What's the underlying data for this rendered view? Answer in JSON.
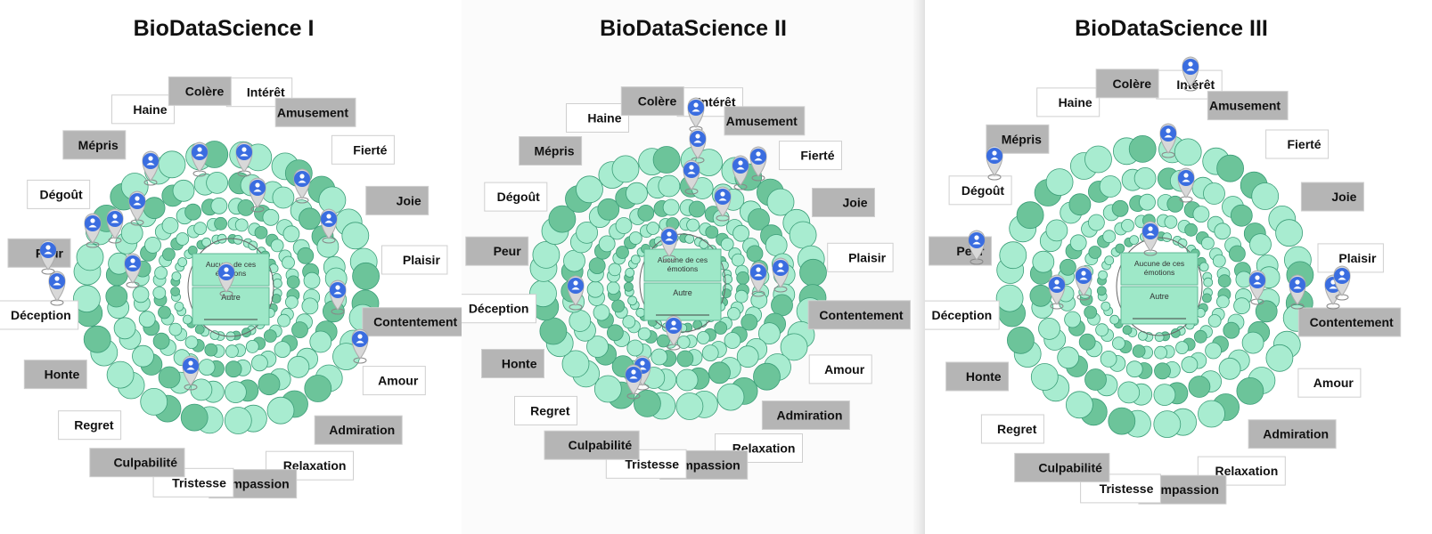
{
  "colors": {
    "light_bubble": "#a8ecd0",
    "dark_bubble": "#6cc49a",
    "bubble_stroke": "#3c9e78",
    "label_gray": "#b5b5b5",
    "label_white": "#ffffff",
    "pin_blue": "#3a6de0",
    "center_fill": "#9ee8c8"
  },
  "center": {
    "none_text": "Aucune de ces émotions",
    "other_text": "Autre"
  },
  "panels": [
    {
      "title": "BioDataScience I"
    },
    {
      "title": "BioDataScience II"
    },
    {
      "title": "BioDataScience III"
    }
  ],
  "emotions": [
    "Intérêt",
    "Amusement",
    "Fierté",
    "Joie",
    "Plaisir",
    "Contentement",
    "Amour",
    "Admiration",
    "Relaxation",
    "Compassion",
    "Tristesse",
    "Culpabilité",
    "Regret",
    "Honte",
    "Déception",
    "Peur",
    "Dégoût",
    "Mépris",
    "Haine",
    "Colère"
  ]
}
